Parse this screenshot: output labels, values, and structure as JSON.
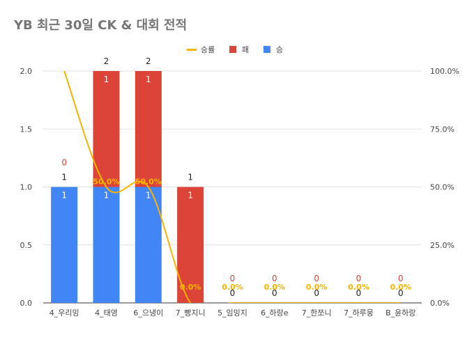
{
  "chart_data": {
    "type": "bar",
    "title": "YB 최근 30일 CK & 대회 전적",
    "categories": [
      "4_우리밍",
      "4_태영",
      "6_으냉이",
      "7_빵지니",
      "5_임밍지",
      "6_하랑e",
      "7_한쪼니",
      "7_하루뭉",
      "B_윤하랑"
    ],
    "stacked": true,
    "series": [
      {
        "name": "승",
        "kind": "bar",
        "axis": "left",
        "color": "#4285f4",
        "values": [
          1,
          1,
          1,
          0,
          0,
          0,
          0,
          0,
          0
        ]
      },
      {
        "name": "패",
        "kind": "bar",
        "axis": "left",
        "color": "#db4437",
        "values": [
          0,
          1,
          1,
          1,
          0,
          0,
          0,
          0,
          0
        ]
      },
      {
        "name": "승률",
        "kind": "line",
        "axis": "right",
        "color": "#f4b400",
        "smooth": true,
        "values": [
          100,
          50,
          50,
          0,
          0,
          0,
          0,
          0,
          0
        ]
      }
    ],
    "totals": [
      1,
      2,
      2,
      1,
      0,
      0,
      0,
      0,
      0
    ],
    "win_labels": [
      "1",
      "1",
      "1",
      "",
      "",
      "",
      "",
      "",
      ""
    ],
    "loss_labels": [
      "0",
      "1",
      "1",
      "1",
      "0",
      "0",
      "0",
      "0",
      "0"
    ],
    "rate_labels": [
      "",
      "50.0%",
      "50.0%",
      "0.0%",
      "0.0%",
      "0.0%",
      "0.0%",
      "0.0%",
      "0.0%"
    ],
    "y_left": {
      "min": 0,
      "max": 2,
      "ticks": [
        "0.0",
        "0.5",
        "1.0",
        "1.5",
        "2.0"
      ],
      "values": [
        0,
        0.5,
        1,
        1.5,
        2
      ]
    },
    "y_right": {
      "min": 0,
      "max": 100,
      "ticks": [
        "0.0%",
        "25.0%",
        "50.0%",
        "75.0%",
        "100.0%"
      ],
      "values": [
        0,
        25,
        50,
        75,
        100
      ]
    },
    "legend": {
      "position": "top",
      "order": [
        "승률",
        "패",
        "승"
      ]
    },
    "grid": true
  }
}
